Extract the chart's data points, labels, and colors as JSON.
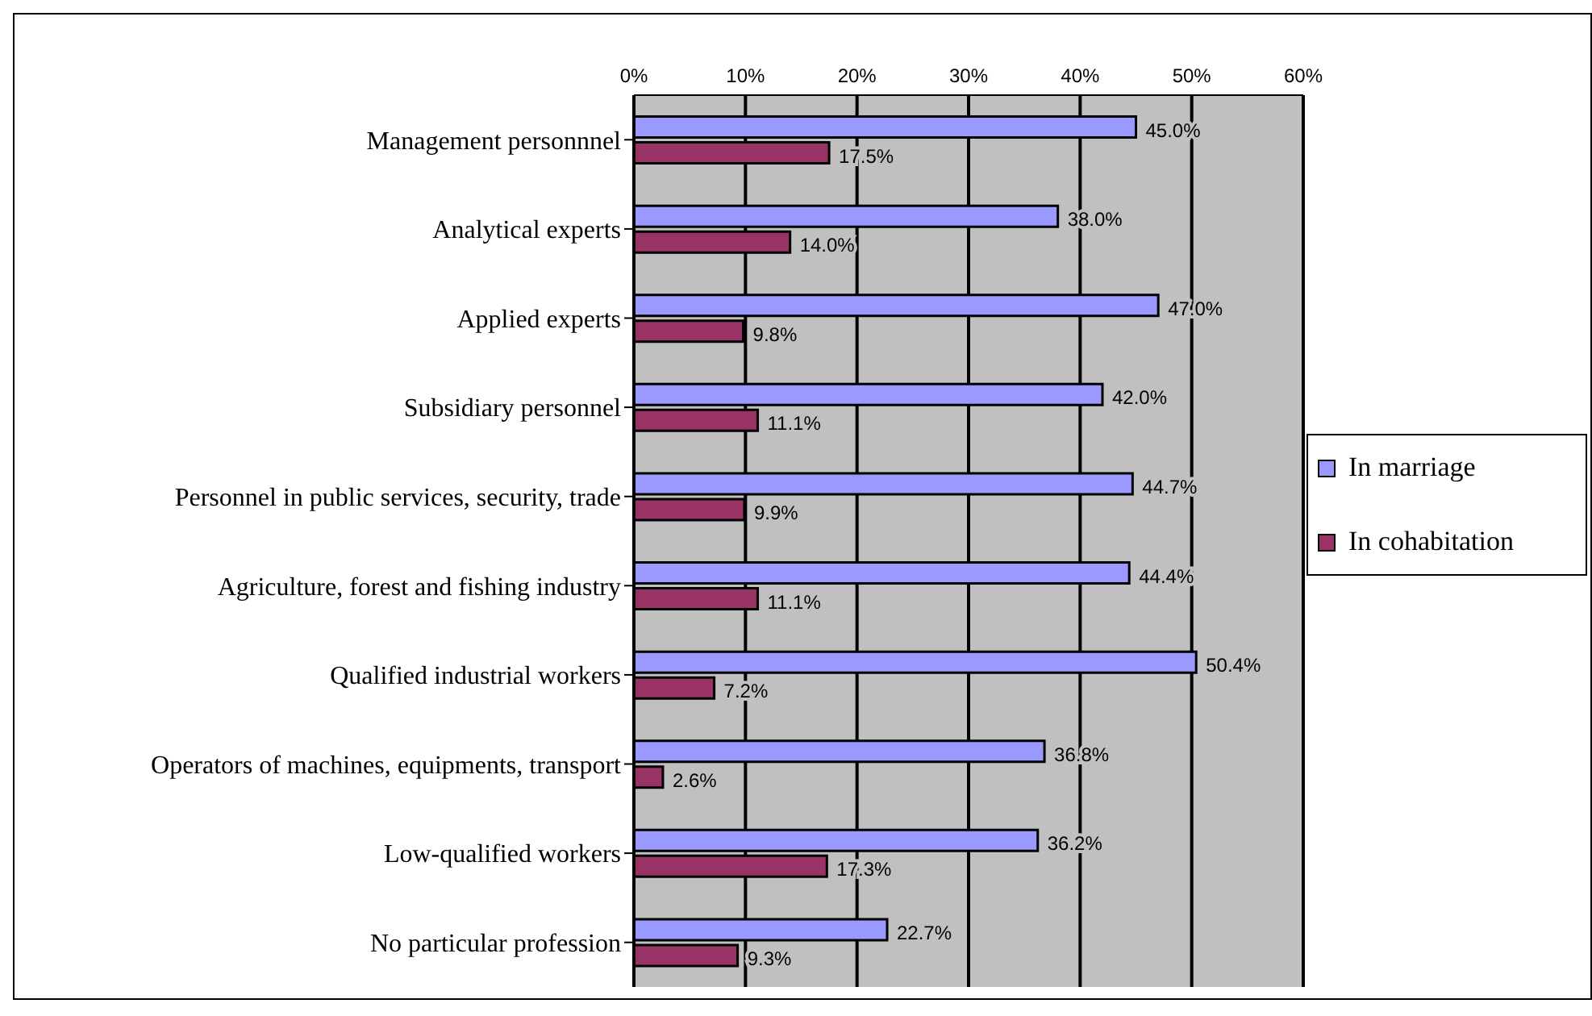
{
  "chart_data": {
    "type": "bar",
    "orientation": "horizontal",
    "categories": [
      "Management personnnel",
      "Analytical experts",
      "Applied experts",
      "Subsidiary personnel",
      "Personnel in public services, security, trade",
      "Agriculture, forest and fishing industry",
      "Qualified industrial workers",
      "Operators of machines, equipments, transport",
      "Low-qualified workers",
      "No particular profession"
    ],
    "series": [
      {
        "name": "In marriage",
        "color": "#9999ff",
        "values": [
          45.0,
          38.0,
          47.0,
          42.0,
          44.7,
          44.4,
          50.4,
          36.8,
          36.2,
          22.7
        ],
        "value_labels": [
          "45.0%",
          "38.0%",
          "47.0%",
          "42.0%",
          "44.7%",
          "44.4%",
          "50.4%",
          "36.8%",
          "36.2%",
          "22.7%"
        ]
      },
      {
        "name": "In cohabitation",
        "color": "#993366",
        "values": [
          17.5,
          14.0,
          9.8,
          11.1,
          9.9,
          11.1,
          7.2,
          2.6,
          17.3,
          9.3
        ],
        "value_labels": [
          "17.5%",
          "14.0%",
          "9.8%",
          "11.1%",
          "9.9%",
          "11.1%",
          "7.2%",
          "2.6%",
          "17.3%",
          "9.3%"
        ]
      }
    ],
    "xlim": [
      0,
      60
    ],
    "xticks": [
      {
        "value": 0,
        "label": "0%"
      },
      {
        "value": 10,
        "label": "10%"
      },
      {
        "value": 20,
        "label": "20%"
      },
      {
        "value": 30,
        "label": "30%"
      },
      {
        "value": 40,
        "label": "40%"
      },
      {
        "value": 50,
        "label": "50%"
      },
      {
        "value": 60,
        "label": "60%"
      }
    ],
    "grid": "x",
    "legend": "right"
  }
}
